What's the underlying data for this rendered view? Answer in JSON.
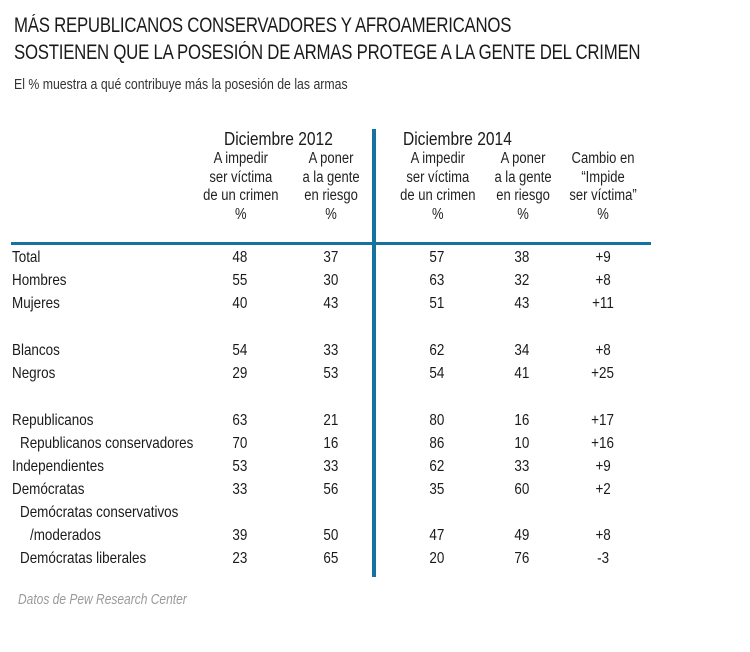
{
  "title_line1": "MÁS REPUBLICANOS CONSERVADORES Y AFROAMERICANOS",
  "title_line2": "SOSTIENEN QUE LA POSESIÓN DE ARMAS PROTEGE A LA GENTE DEL CRIMEN",
  "subtitle": "El % muestra a qué contribuye más la posesión de las armas",
  "source": "Datos de Pew Research Center",
  "accent_color": "#1572a1",
  "chart_data": {
    "type": "table",
    "title": "MÁS REPUBLICANOS CONSERVADORES Y AFROAMERICANOS SOSTIENEN QUE LA POSESIÓN DE ARMAS PROTEGE A LA GENTE DEL CRIMEN",
    "subtitle": "El % muestra a qué contribuye más la posesión de las armas",
    "groups": [
      {
        "label": "Diciembre 2012"
      },
      {
        "label": "Diciembre 2014"
      }
    ],
    "columns": [
      {
        "group": "Diciembre 2012",
        "label": "A impedir\nser víctima\nde un crimen\n%"
      },
      {
        "group": "Diciembre 2012",
        "label": "A poner\na la gente\nen riesgo\n%"
      },
      {
        "group": "Diciembre 2014",
        "label": "A impedir\nser víctima\nde un crimen\n%"
      },
      {
        "group": "Diciembre 2014",
        "label": "A poner\na la gente\nen riesgo\n%"
      },
      {
        "group": "Diciembre 2014",
        "label": "Cambio en\n“Impide\nser víctima”\n%"
      }
    ],
    "rows": [
      {
        "label": "Total",
        "indent": 0,
        "values": [
          "48",
          "37",
          "57",
          "38",
          "+9"
        ]
      },
      {
        "label": "Hombres",
        "indent": 0,
        "values": [
          "55",
          "30",
          "63",
          "32",
          "+8"
        ]
      },
      {
        "label": "Mujeres",
        "indent": 0,
        "values": [
          "40",
          "43",
          "51",
          "43",
          "+11"
        ]
      },
      {
        "label": "Blancos",
        "indent": 0,
        "values": [
          "54",
          "33",
          "62",
          "34",
          "+8"
        ]
      },
      {
        "label": "Negros",
        "indent": 0,
        "values": [
          "29",
          "53",
          "54",
          "41",
          "+25"
        ]
      },
      {
        "label": "Republicanos",
        "indent": 0,
        "values": [
          "63",
          "21",
          "80",
          "16",
          "+17"
        ]
      },
      {
        "label": "Republicanos conservadores",
        "indent": 1,
        "values": [
          "70",
          "16",
          "86",
          "10",
          "+16"
        ]
      },
      {
        "label": "Independientes",
        "indent": 0,
        "values": [
          "53",
          "33",
          "62",
          "33",
          "+9"
        ]
      },
      {
        "label": "Demócratas",
        "indent": 0,
        "values": [
          "33",
          "56",
          "35",
          "60",
          "+2"
        ]
      },
      {
        "label": "Demócratas conservativos",
        "indent": 1,
        "values": []
      },
      {
        "label": "/moderados",
        "indent": 2,
        "values": [
          "39",
          "50",
          "47",
          "49",
          "+8"
        ]
      },
      {
        "label": "Demócratas liberales",
        "indent": 1,
        "values": [
          "23",
          "65",
          "20",
          "76",
          "-3"
        ]
      }
    ]
  }
}
